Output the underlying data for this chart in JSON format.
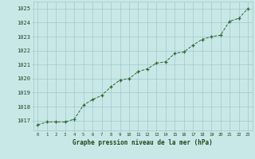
{
  "x": [
    0,
    1,
    2,
    3,
    4,
    5,
    6,
    7,
    8,
    9,
    10,
    11,
    12,
    13,
    14,
    15,
    16,
    17,
    18,
    19,
    20,
    21,
    22,
    23
  ],
  "y": [
    1016.7,
    1016.9,
    1016.9,
    1016.9,
    1017.1,
    1018.1,
    1018.5,
    1018.8,
    1019.4,
    1019.9,
    1020.0,
    1020.5,
    1020.7,
    1021.1,
    1021.2,
    1021.8,
    1021.9,
    1022.4,
    1022.8,
    1023.0,
    1023.1,
    1024.1,
    1024.3,
    1025.0
  ],
  "line_color": "#2d6a2d",
  "marker_color": "#2d6a2d",
  "bg_color": "#c8e8e8",
  "grid_color": "#a0c8c8",
  "xlabel": "Graphe pression niveau de la mer (hPa)",
  "xlabel_color": "#1a4a1a",
  "ylabel_ticks": [
    1017,
    1018,
    1019,
    1020,
    1021,
    1022,
    1023,
    1024,
    1025
  ],
  "ylim": [
    1016.3,
    1025.5
  ],
  "xlim": [
    -0.5,
    23.5
  ],
  "tick_label_color": "#1a4a1a"
}
